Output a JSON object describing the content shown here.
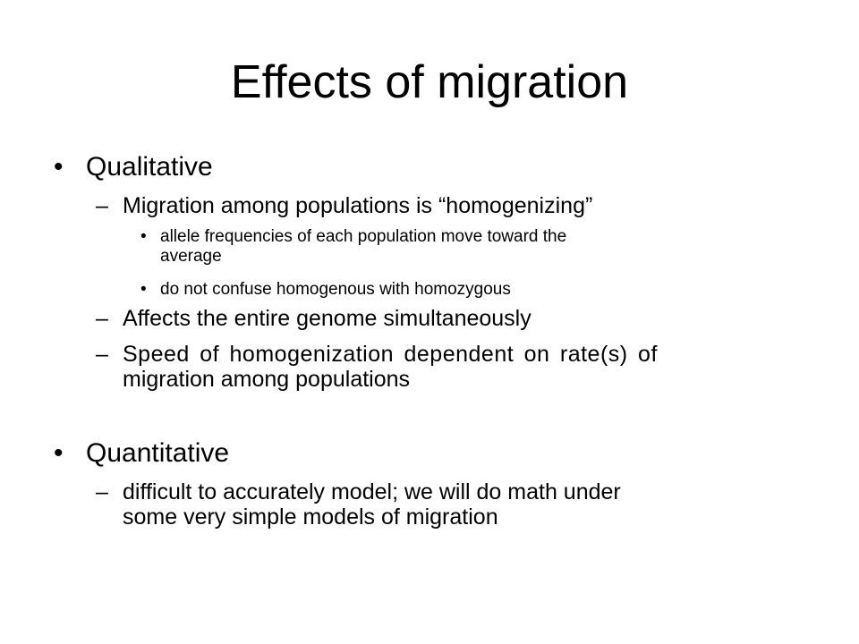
{
  "slide": {
    "title": "Effects of migration",
    "sections": [
      {
        "heading": "Qualitative",
        "points": [
          {
            "text": "Migration among populations is “homogenizing”",
            "subpoints": [
              {
                "line1": "allele frequencies of each population move toward the",
                "line2": "average"
              },
              {
                "line1": "do not confuse homogenous with homozygous"
              }
            ]
          },
          {
            "line1": "Affects the entire genome simultaneously"
          },
          {
            "line1": "Speed of homogenization dependent on rate(s) of",
            "line2": "migration among populations"
          }
        ]
      },
      {
        "heading": "Quantitative",
        "points": [
          {
            "line1": "difficult to accurately model; we will do math under",
            "line2": "some very simple models of migration"
          }
        ]
      }
    ],
    "bullet_char": "•",
    "dash_char": "–"
  }
}
